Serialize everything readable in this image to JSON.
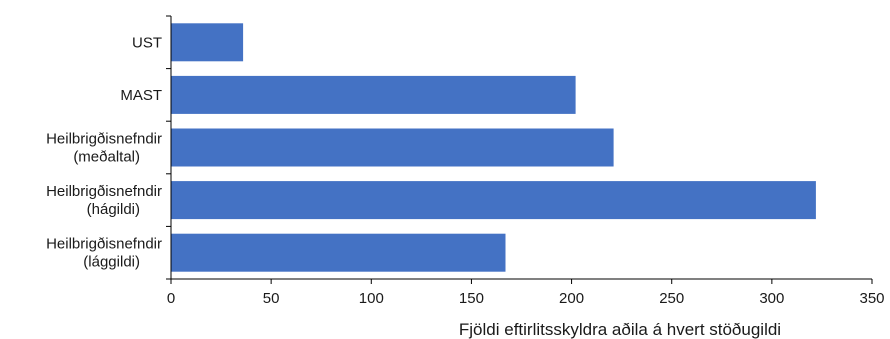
{
  "chart_data": {
    "type": "bar",
    "orientation": "horizontal",
    "categories": [
      [
        "UST"
      ],
      [
        "MAST"
      ],
      [
        "Heilbrigðisnefndir",
        "(meðaltal)"
      ],
      [
        "Heilbrigðisnefndir",
        "(hágildi)"
      ],
      [
        "Heilbrigðisnefndir",
        "(lággildi)"
      ]
    ],
    "values": [
      36,
      202,
      221,
      322,
      167
    ],
    "xlabel": "Fjöldi eftirlitsskyldra aðila á hvert stöðugildi",
    "xlim": [
      0,
      350
    ],
    "xticks": [
      0,
      50,
      100,
      150,
      200,
      250,
      300,
      350
    ],
    "grid": false,
    "bar_color": "#4472C4",
    "axis_color": "#000000"
  }
}
